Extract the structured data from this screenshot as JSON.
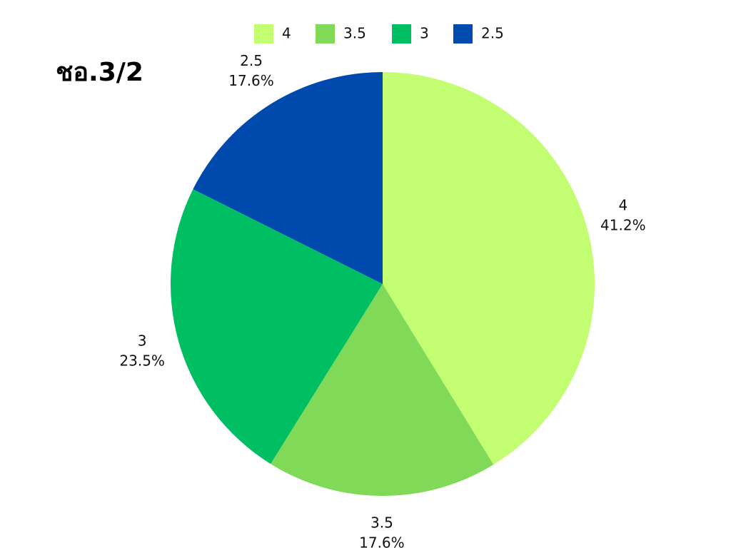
{
  "chart_data": {
    "type": "pie",
    "title": "ชอ.3/2",
    "categories": [
      "4",
      "3.5",
      "3",
      "2.5"
    ],
    "values": [
      41.2,
      17.6,
      23.5,
      17.6
    ],
    "value_labels": [
      "41.2%",
      "17.6%",
      "23.5%",
      "17.6%"
    ],
    "colors": [
      "#c3fd72",
      "#80da58",
      "#00bf63",
      "#004aad"
    ],
    "legend": "top"
  }
}
